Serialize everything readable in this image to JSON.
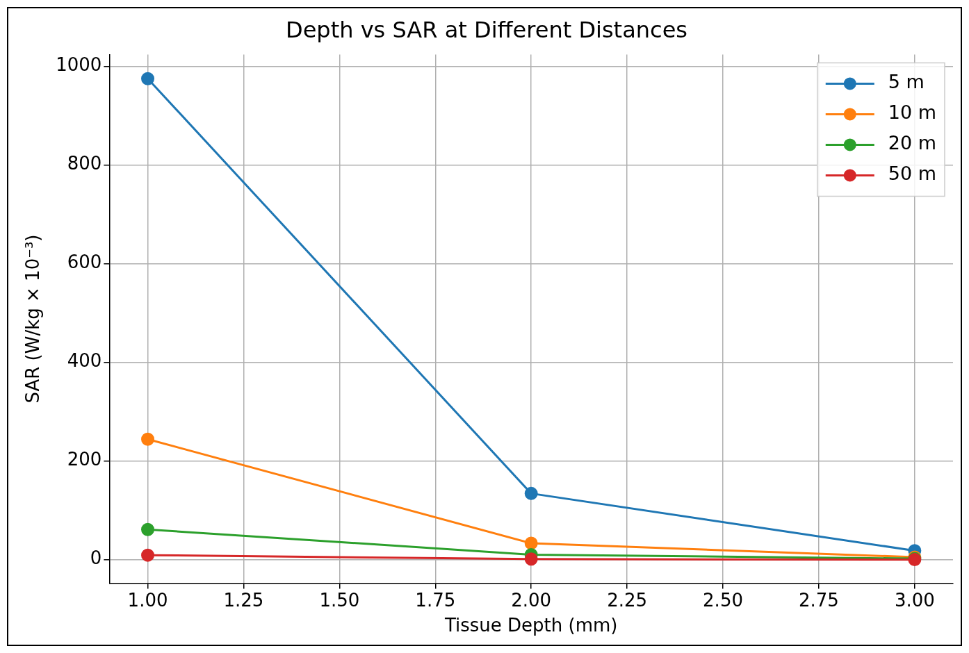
{
  "chart_data": {
    "type": "line",
    "title": "Depth vs SAR at Different Distances",
    "xlabel": "Tissue Depth (mm)",
    "ylabel": "SAR (W/kg × 10⁻³)",
    "x": [
      1,
      2,
      3
    ],
    "series": [
      {
        "name": "5 m",
        "color": "#1f77b4",
        "values": [
          975,
          134,
          18
        ]
      },
      {
        "name": "10 m",
        "color": "#ff7f0e",
        "values": [
          244,
          33,
          5
        ]
      },
      {
        "name": "20 m",
        "color": "#2ca02c",
        "values": [
          61,
          10,
          2
        ]
      },
      {
        "name": "50 m",
        "color": "#d62728",
        "values": [
          9,
          1,
          0
        ]
      }
    ],
    "xlim": [
      0.9,
      3.1
    ],
    "ylim": [
      -48,
      1024
    ],
    "xticks": [
      {
        "value": 1,
        "label": "1.00"
      },
      {
        "value": 1.25,
        "label": "1.25"
      },
      {
        "value": 1.5,
        "label": "1.50"
      },
      {
        "value": 1.75,
        "label": "1.75"
      },
      {
        "value": 2,
        "label": "2.00"
      },
      {
        "value": 2.25,
        "label": "2.25"
      },
      {
        "value": 2.5,
        "label": "2.50"
      },
      {
        "value": 2.75,
        "label": "2.75"
      },
      {
        "value": 3,
        "label": "3.00"
      }
    ],
    "yticks": [
      0,
      200,
      400,
      600,
      800,
      1000
    ],
    "grid": true,
    "legend": "top right",
    "marker": "circle",
    "line_style": "solid"
  }
}
